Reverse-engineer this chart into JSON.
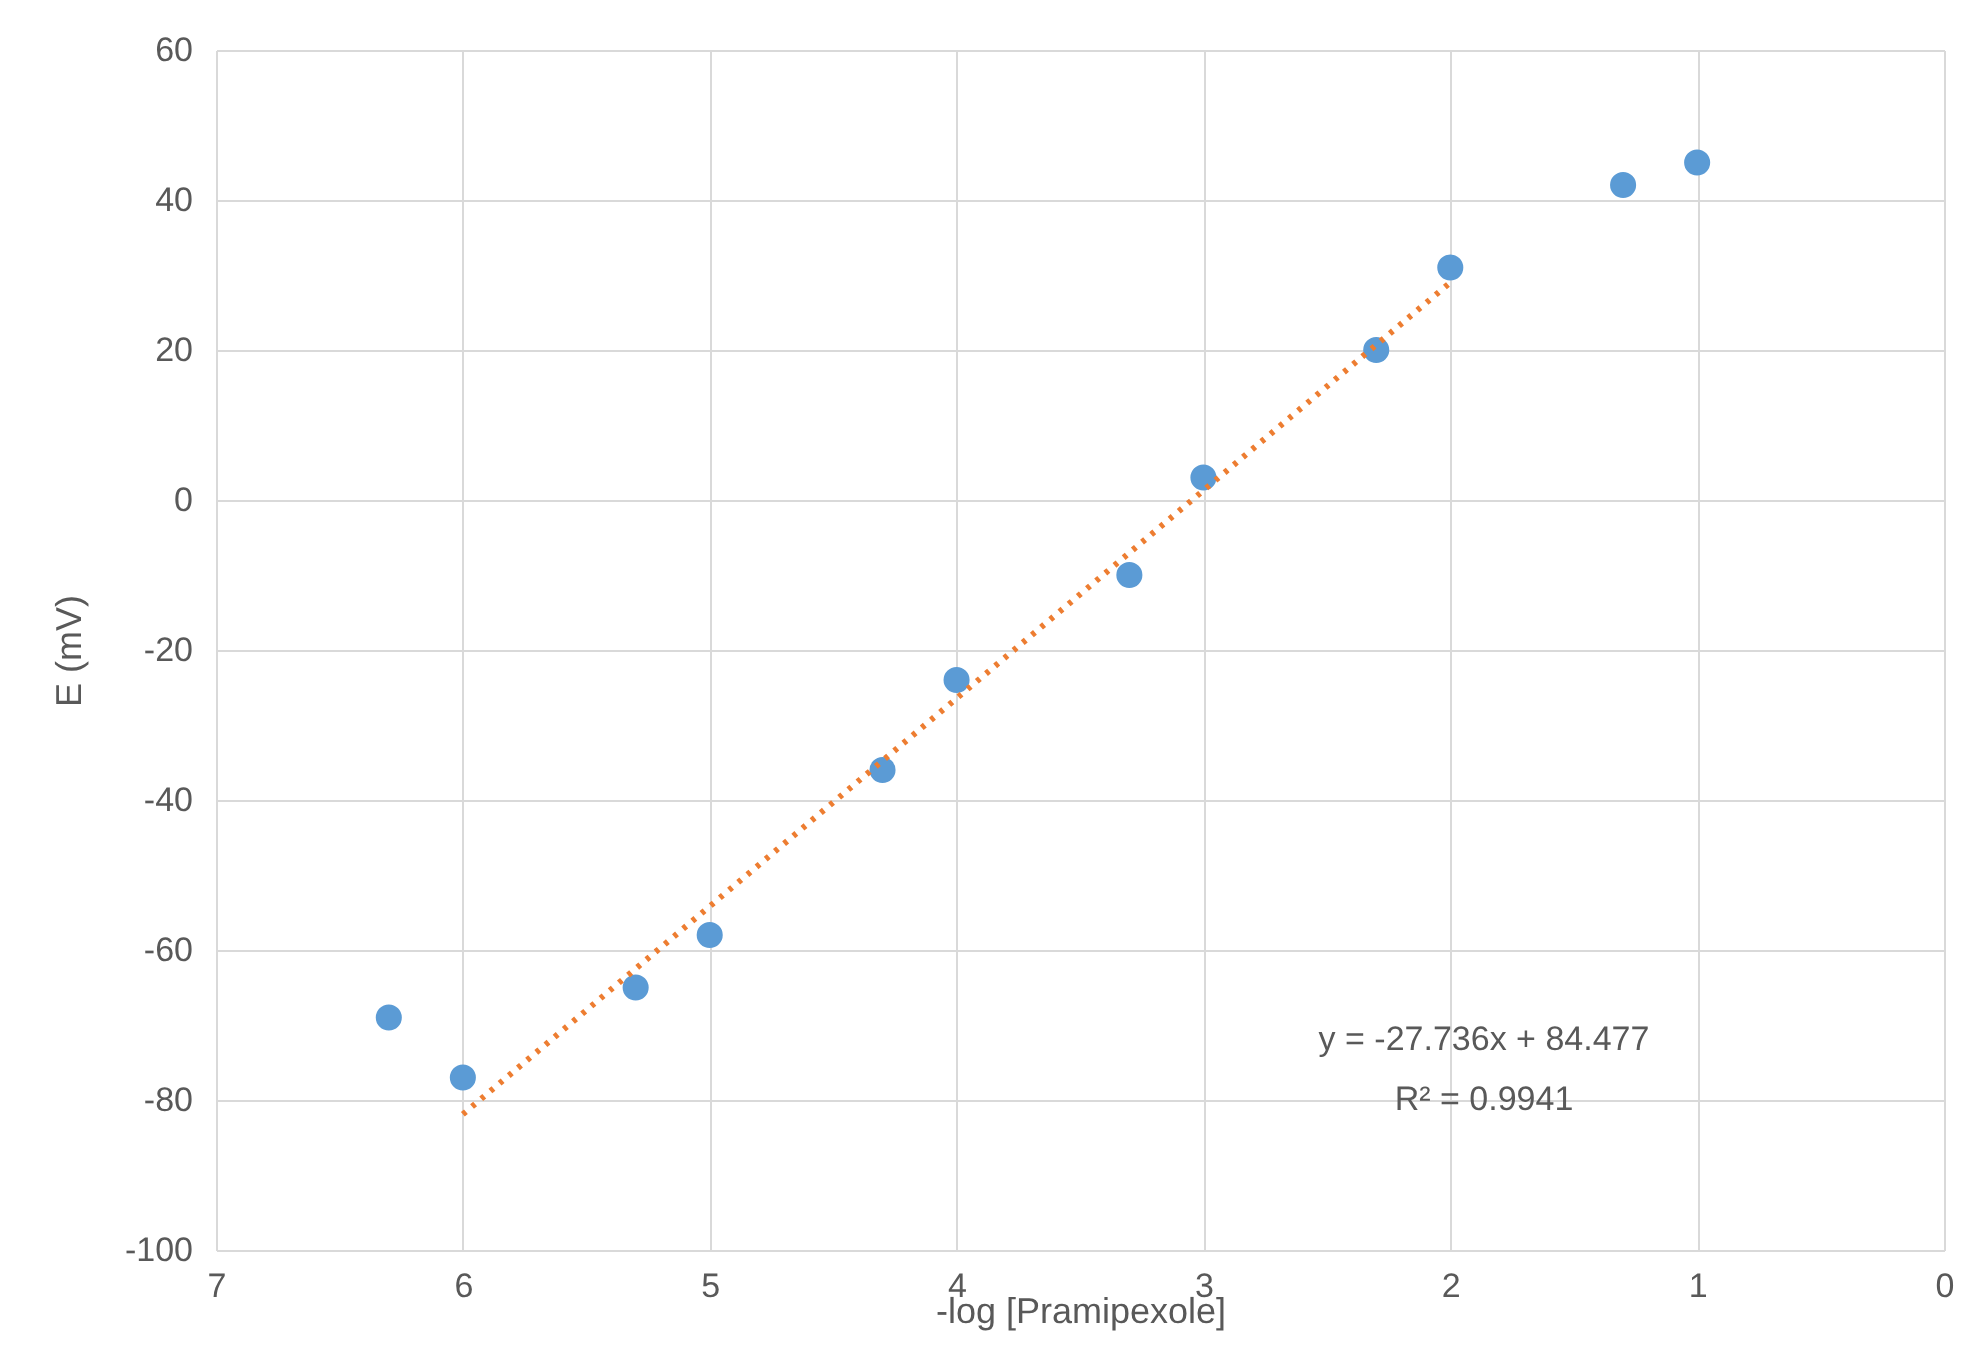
{
  "chart_data": {
    "type": "scatter",
    "xlabel": "-log [Pramipexole]",
    "ylabel": "E (mV)",
    "xlim": [
      7,
      0
    ],
    "xticks": [
      7,
      6,
      5,
      4,
      3,
      2,
      1,
      0
    ],
    "ylim": [
      -100,
      60
    ],
    "yticks": [
      -100,
      -80,
      -60,
      -40,
      -20,
      0,
      20,
      40,
      60
    ],
    "grid": true,
    "annotations": [
      "y = -27.736x + 84.477",
      "R² = 0.9941"
    ],
    "series": [
      {
        "marker": "circle",
        "color": "#5b9bd5",
        "x": [
          6.3,
          6,
          5.3,
          5,
          4.3,
          4,
          3.3,
          3,
          2.3,
          2,
          1.3,
          1
        ],
        "values": [
          -69,
          -77,
          -65,
          -58,
          -36,
          -24,
          -10,
          3,
          20,
          31,
          42,
          45
        ]
      },
      {
        "type": "line",
        "color": "#ed7d31",
        "line_style": "dotted",
        "x": [
          6,
          2
        ],
        "values": [
          -81.9,
          29.0
        ]
      }
    ]
  }
}
